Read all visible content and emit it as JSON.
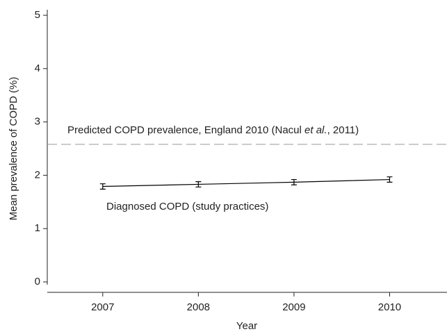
{
  "chart_data": {
    "type": "line",
    "x_label": "Year",
    "y_label": "Mean prevalence of COPD (%)",
    "x": [
      2007,
      2008,
      2009,
      2010
    ],
    "series": [
      {
        "name": "Diagnosed COPD (study practices)",
        "color": "#000000",
        "values": [
          1.79,
          1.83,
          1.87,
          1.92
        ],
        "errors": [
          0.05,
          0.05,
          0.05,
          0.05
        ]
      }
    ],
    "reference_line": {
      "value": 2.58,
      "color": "#999999",
      "label_parts": [
        "Predicted COPD prevalence, England 2010 (Nacul ",
        "et al.",
        ",  2011)"
      ]
    },
    "xlim": [
      2006.42,
      2010.6
    ],
    "xticks": [
      2007,
      2008,
      2009,
      2010
    ],
    "ylim": [
      0,
      5
    ],
    "yticks": [
      0,
      1,
      2,
      3,
      4,
      5
    ],
    "grid": false
  }
}
